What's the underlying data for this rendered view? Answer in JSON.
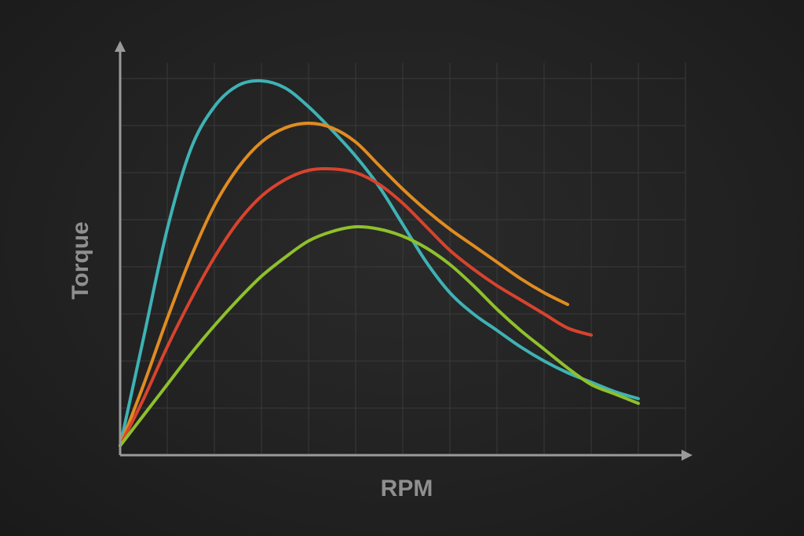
{
  "chart_data": {
    "type": "line",
    "title": "",
    "xlabel": "RPM",
    "ylabel": "Torque",
    "grid": true,
    "xlim": [
      0,
      12
    ],
    "ylim": [
      0,
      8
    ],
    "series": [
      {
        "color": "#3fb2b4",
        "points": [
          [
            0,
            0.2
          ],
          [
            0.5,
            2.5
          ],
          [
            1,
            4.8
          ],
          [
            1.5,
            6.5
          ],
          [
            2,
            7.4
          ],
          [
            2.5,
            7.85
          ],
          [
            3,
            7.95
          ],
          [
            3.5,
            7.8
          ],
          [
            4,
            7.4
          ],
          [
            4.5,
            6.9
          ],
          [
            5,
            6.35
          ],
          [
            5.5,
            5.7
          ],
          [
            6,
            4.9
          ],
          [
            6.5,
            4.1
          ],
          [
            7,
            3.45
          ],
          [
            7.5,
            3.0
          ],
          [
            8,
            2.65
          ],
          [
            8.5,
            2.3
          ],
          [
            9,
            2.0
          ],
          [
            9.5,
            1.75
          ],
          [
            10,
            1.55
          ],
          [
            10.5,
            1.35
          ],
          [
            11,
            1.2
          ]
        ]
      },
      {
        "color": "#e08c22",
        "points": [
          [
            0,
            0.2
          ],
          [
            0.5,
            1.5
          ],
          [
            1,
            2.9
          ],
          [
            1.5,
            4.2
          ],
          [
            2,
            5.3
          ],
          [
            2.5,
            6.1
          ],
          [
            3,
            6.65
          ],
          [
            3.5,
            6.95
          ],
          [
            4,
            7.05
          ],
          [
            4.5,
            6.95
          ],
          [
            5,
            6.65
          ],
          [
            5.5,
            6.15
          ],
          [
            6,
            5.65
          ],
          [
            6.5,
            5.2
          ],
          [
            7,
            4.8
          ],
          [
            7.5,
            4.45
          ],
          [
            8,
            4.1
          ],
          [
            8.5,
            3.75
          ],
          [
            9,
            3.45
          ],
          [
            9.5,
            3.2
          ]
        ]
      },
      {
        "color": "#d8432e",
        "points": [
          [
            0,
            0.2
          ],
          [
            0.5,
            1.2
          ],
          [
            1,
            2.3
          ],
          [
            1.5,
            3.3
          ],
          [
            2,
            4.2
          ],
          [
            2.5,
            4.95
          ],
          [
            3,
            5.5
          ],
          [
            3.5,
            5.85
          ],
          [
            4,
            6.05
          ],
          [
            4.5,
            6.08
          ],
          [
            5,
            6.0
          ],
          [
            5.5,
            5.75
          ],
          [
            6,
            5.35
          ],
          [
            6.5,
            4.85
          ],
          [
            7,
            4.35
          ],
          [
            7.5,
            3.95
          ],
          [
            8,
            3.6
          ],
          [
            8.5,
            3.3
          ],
          [
            9,
            3.0
          ],
          [
            9.5,
            2.7
          ],
          [
            10,
            2.55
          ]
        ]
      },
      {
        "color": "#8fc02c",
        "points": [
          [
            0,
            0.2
          ],
          [
            0.5,
            0.85
          ],
          [
            1,
            1.5
          ],
          [
            1.5,
            2.15
          ],
          [
            2,
            2.75
          ],
          [
            2.5,
            3.3
          ],
          [
            3,
            3.8
          ],
          [
            3.5,
            4.2
          ],
          [
            4,
            4.55
          ],
          [
            4.5,
            4.75
          ],
          [
            5,
            4.85
          ],
          [
            5.5,
            4.8
          ],
          [
            6,
            4.65
          ],
          [
            6.5,
            4.4
          ],
          [
            7,
            4.05
          ],
          [
            7.5,
            3.6
          ],
          [
            8,
            3.1
          ],
          [
            8.5,
            2.65
          ],
          [
            9,
            2.25
          ],
          [
            9.5,
            1.85
          ],
          [
            10,
            1.5
          ],
          [
            10.5,
            1.3
          ],
          [
            11,
            1.1
          ]
        ]
      }
    ]
  }
}
